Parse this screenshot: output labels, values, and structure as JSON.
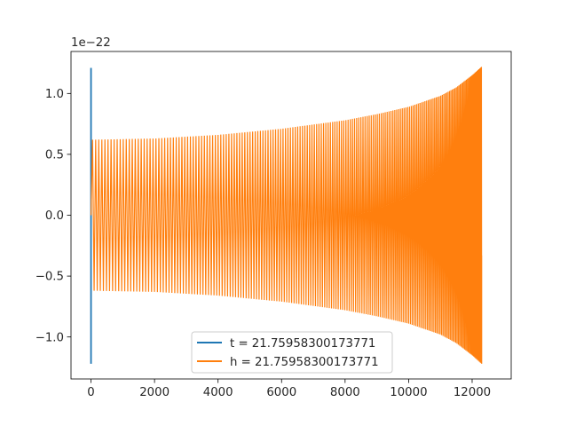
{
  "chart_data": {
    "type": "line",
    "title": "",
    "xlabel": "",
    "ylabel": "",
    "y_offset_label": "1e−22",
    "xlim": [
      -630,
      13230
    ],
    "ylim": [
      -1.345,
      1.345
    ],
    "x_ticks": [
      0,
      2000,
      4000,
      6000,
      8000,
      10000,
      12000
    ],
    "x_tick_labels": [
      "0",
      "2000",
      "4000",
      "6000",
      "8000",
      "10000",
      "12000"
    ],
    "y_ticks": [
      -1.0,
      -0.5,
      0.0,
      0.5,
      1.0
    ],
    "y_tick_labels": [
      "−1.0",
      "−0.5",
      "0.0",
      "0.5",
      "1.0"
    ],
    "grid": false,
    "legend_position": "lower center",
    "series": [
      {
        "name": "t = 21.75958300173771",
        "color": "#1f77b4",
        "description": "spike at x≈0 spanning the full amplitude",
        "x": [
          0,
          0,
          0,
          0,
          0
        ],
        "values": [
          0.0,
          1.21,
          -1.22,
          1.21,
          0.0
        ]
      },
      {
        "name": "h = 21.75958300173771",
        "color": "#ff7f0e",
        "description": "chirp oscillation; envelope amplitude grows with x",
        "envelope_x": [
          0,
          2000,
          4000,
          6000,
          8000,
          9000,
          10000,
          11000,
          11500,
          12000,
          12300
        ],
        "envelope_amplitude": [
          0.62,
          0.63,
          0.66,
          0.71,
          0.78,
          0.83,
          0.89,
          0.98,
          1.05,
          1.15,
          1.22
        ],
        "x_end": 12300
      }
    ]
  }
}
